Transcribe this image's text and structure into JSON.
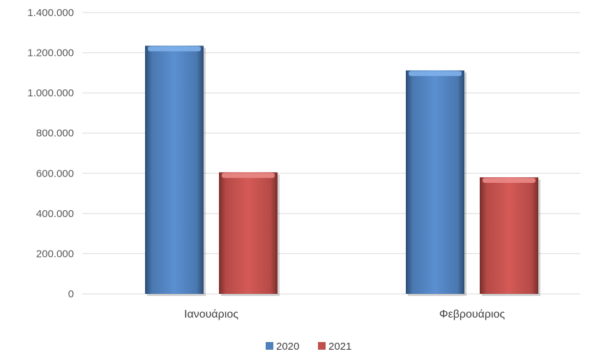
{
  "chart_data": {
    "type": "bar",
    "title": "",
    "xlabel": "",
    "ylabel": "",
    "categories": [
      "Ιανουάριος",
      "Φεβρουάριος"
    ],
    "series": [
      {
        "name": "2020",
        "values": [
          1235000,
          1112000
        ],
        "color": "#4f81bd"
      },
      {
        "name": "2021",
        "values": [
          605000,
          580000
        ],
        "color": "#c0504d"
      }
    ],
    "ylim": [
      0,
      1400000
    ],
    "yticks": [
      0,
      200000,
      400000,
      600000,
      800000,
      1000000,
      1200000,
      1400000
    ],
    "ytick_labels": [
      "0",
      "200.000",
      "400.000",
      "600.000",
      "800.000",
      "1.000.000",
      "1.200.000",
      "1.400.000"
    ],
    "grid": true,
    "legend_position": "bottom-center"
  }
}
